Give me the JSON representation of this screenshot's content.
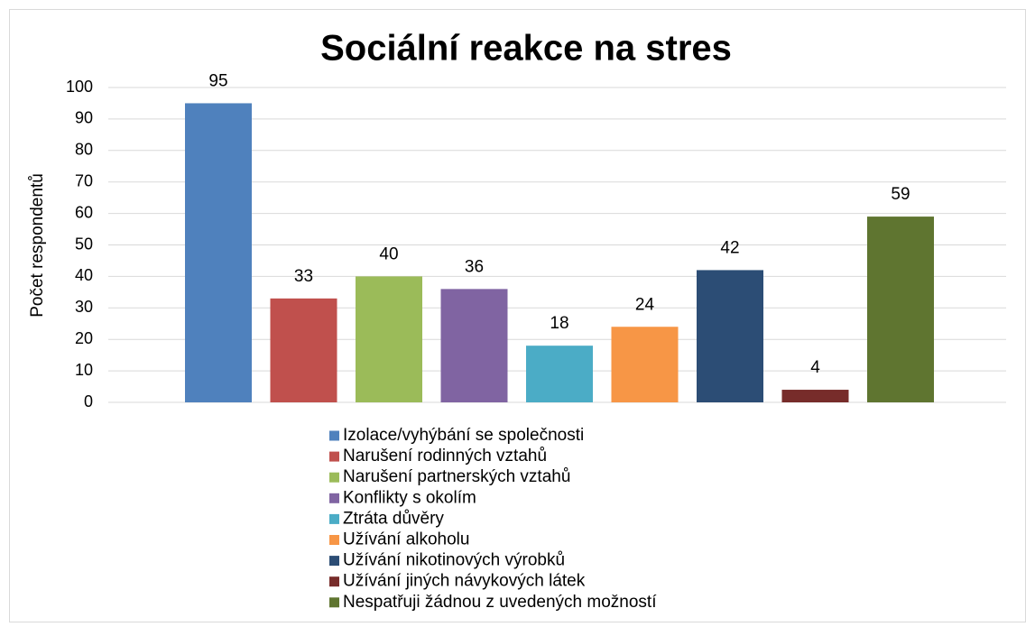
{
  "chart_data": {
    "type": "bar",
    "title": "Sociální reakce na stres",
    "y_label": "Počet respondentů",
    "categories": [
      "Izolace/vyhýbání se společnosti",
      "Narušení rodinných vztahů",
      "Narušení partnerských vztahů",
      "Konflikty s okolím",
      "Ztráta důvěry",
      "Užívání alkoholu",
      "Užívání nikotinových výrobků",
      "Užívání jiných návykových látek",
      "Nespatřuji žádnou z uvedených možností"
    ],
    "values": [
      95,
      33,
      40,
      36,
      18,
      24,
      42,
      4,
      59
    ],
    "colors": [
      "#4f81bd",
      "#c0504d",
      "#9bbb59",
      "#8064a2",
      "#4bacc6",
      "#f79646",
      "#2c4d75",
      "#772c2a",
      "#5f7530"
    ],
    "ylim": [
      0,
      100
    ],
    "yticks": [
      0,
      10,
      20,
      30,
      40,
      50,
      60,
      70,
      80,
      90,
      100
    ],
    "grid": true,
    "legend": "bottom"
  }
}
